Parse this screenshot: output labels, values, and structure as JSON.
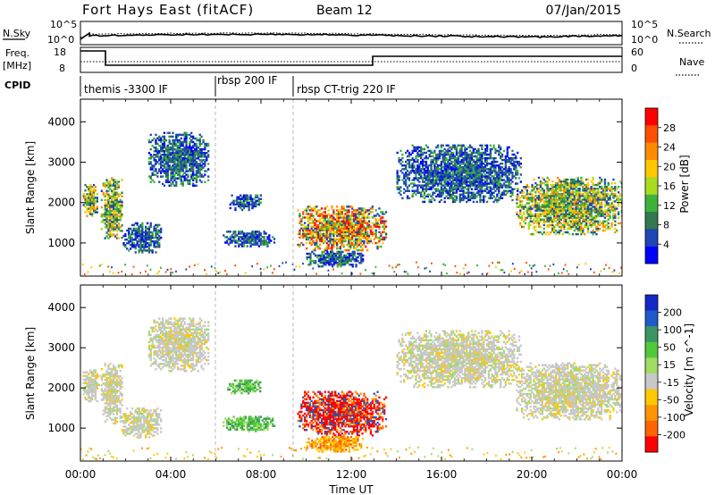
{
  "header": {
    "station": "Fort Hays East (fitACF)",
    "beam": "Beam 12",
    "date": "07/Jan/2015"
  },
  "noise_panel": {
    "left_label": "N.Sky",
    "left_ticks": [
      "10^5",
      "10^0"
    ],
    "right_label": "N.Search",
    "right_ticks": [
      "10^5",
      "10^0"
    ]
  },
  "freq_panel": {
    "left_label_1": "Freq.",
    "left_label_2": "[MHz]",
    "left_ticks": [
      "18",
      "8"
    ],
    "right_ticks": [
      "60",
      "0"
    ],
    "right_label": "Nave"
  },
  "cpid": {
    "label": "CPID",
    "segments": [
      {
        "label": "themis -3300 IF",
        "start_hr": 0.0,
        "end_hr": 6.0
      },
      {
        "label": "rbsp 200 IF",
        "start_hr": 6.0,
        "end_hr": 9.5
      },
      {
        "label": "rbsp CT-trig 220 IF",
        "start_hr": 9.5,
        "end_hr": 24.0
      }
    ]
  },
  "x_axis": {
    "label": "Time UT",
    "ticks": [
      "00:00",
      "04:00",
      "08:00",
      "12:00",
      "16:00",
      "20:00",
      "00:00"
    ],
    "tick_hours": [
      0,
      4,
      8,
      12,
      16,
      20,
      24
    ],
    "range": [
      0,
      24
    ]
  },
  "colorbars": {
    "power": {
      "title": "Power [dB]",
      "ticks": [
        "28",
        "24",
        "20",
        "16",
        "12",
        "8",
        "4"
      ],
      "colors": [
        "#ff0000",
        "#ff5000",
        "#ff8c00",
        "#ffc800",
        "#aadc1e",
        "#3cb43c",
        "#327850",
        "#1e46b4",
        "#0000ff"
      ]
    },
    "velocity": {
      "title": "Velocity [m s^-1]",
      "ticks": [
        "200",
        "100",
        "50",
        "15",
        "-15",
        "-50",
        "-100",
        "-200"
      ],
      "colors": [
        "#1428c8",
        "#1e5ac8",
        "#3c9664",
        "#50c83c",
        "#a0dc64",
        "#c8c8c8",
        "#ffc800",
        "#ff9600",
        "#ff6400",
        "#ff0000"
      ]
    }
  },
  "chart_data": [
    {
      "type": "heatmap",
      "name_hint": "power",
      "ylabel": "Slant Range [km]",
      "yticks": [
        1000,
        2000,
        3000,
        4000
      ],
      "ylim": [
        180,
        4560
      ],
      "xlim": [
        0,
        24
      ],
      "blobs": [
        {
          "t0": 0.1,
          "t1": 0.75,
          "r0": 1650,
          "r1": 2450,
          "level": "mid"
        },
        {
          "t0": 0.9,
          "t1": 1.85,
          "r0": 1100,
          "r1": 2600,
          "level": "mid"
        },
        {
          "t0": 1.8,
          "t1": 3.6,
          "r0": 750,
          "r1": 1500,
          "level": "low"
        },
        {
          "t0": 3.0,
          "t1": 5.7,
          "r0": 2400,
          "r1": 3750,
          "level": "low"
        },
        {
          "t0": 6.6,
          "t1": 8.0,
          "r0": 1800,
          "r1": 2200,
          "level": "low"
        },
        {
          "t0": 6.3,
          "t1": 8.6,
          "r0": 900,
          "r1": 1300,
          "level": "low"
        },
        {
          "t0": 9.6,
          "t1": 13.5,
          "r0": 800,
          "r1": 1900,
          "level": "high"
        },
        {
          "t0": 10.0,
          "t1": 12.5,
          "r0": 400,
          "r1": 800,
          "level": "low"
        },
        {
          "t0": 14.0,
          "t1": 19.5,
          "r0": 2000,
          "r1": 3400,
          "level": "low"
        },
        {
          "t0": 19.3,
          "t1": 24.0,
          "r0": 1200,
          "r1": 2600,
          "level": "mid"
        }
      ],
      "ground_band": {
        "r0": 200,
        "r1": 500
      }
    },
    {
      "type": "heatmap",
      "name_hint": "velocity",
      "ylabel": "Slant Range [km]",
      "yticks": [
        1000,
        2000,
        3000,
        4000
      ],
      "ylim": [
        180,
        4560
      ],
      "xlim": [
        0,
        24
      ],
      "blobs": [
        {
          "t0": 0.1,
          "t1": 0.8,
          "r0": 1650,
          "r1": 2450,
          "level": "gray"
        },
        {
          "t0": 0.9,
          "t1": 1.85,
          "r0": 1100,
          "r1": 2600,
          "level": "gray"
        },
        {
          "t0": 1.8,
          "t1": 3.6,
          "r0": 750,
          "r1": 1500,
          "level": "gray"
        },
        {
          "t0": 3.0,
          "t1": 5.7,
          "r0": 2400,
          "r1": 3750,
          "level": "gray"
        },
        {
          "t0": 6.5,
          "t1": 8.0,
          "r0": 1850,
          "r1": 2200,
          "level": "green"
        },
        {
          "t0": 6.3,
          "t1": 8.6,
          "r0": 900,
          "r1": 1300,
          "level": "green"
        },
        {
          "t0": 9.6,
          "t1": 13.5,
          "r0": 800,
          "r1": 1900,
          "level": "red"
        },
        {
          "t0": 10.0,
          "t1": 12.5,
          "r0": 400,
          "r1": 800,
          "level": "orange"
        },
        {
          "t0": 14.0,
          "t1": 19.5,
          "r0": 2000,
          "r1": 3400,
          "level": "gray"
        },
        {
          "t0": 19.3,
          "t1": 24.0,
          "r0": 1200,
          "r1": 2600,
          "level": "gray"
        }
      ],
      "ground_band": {
        "r0": 200,
        "r1": 500
      }
    }
  ]
}
